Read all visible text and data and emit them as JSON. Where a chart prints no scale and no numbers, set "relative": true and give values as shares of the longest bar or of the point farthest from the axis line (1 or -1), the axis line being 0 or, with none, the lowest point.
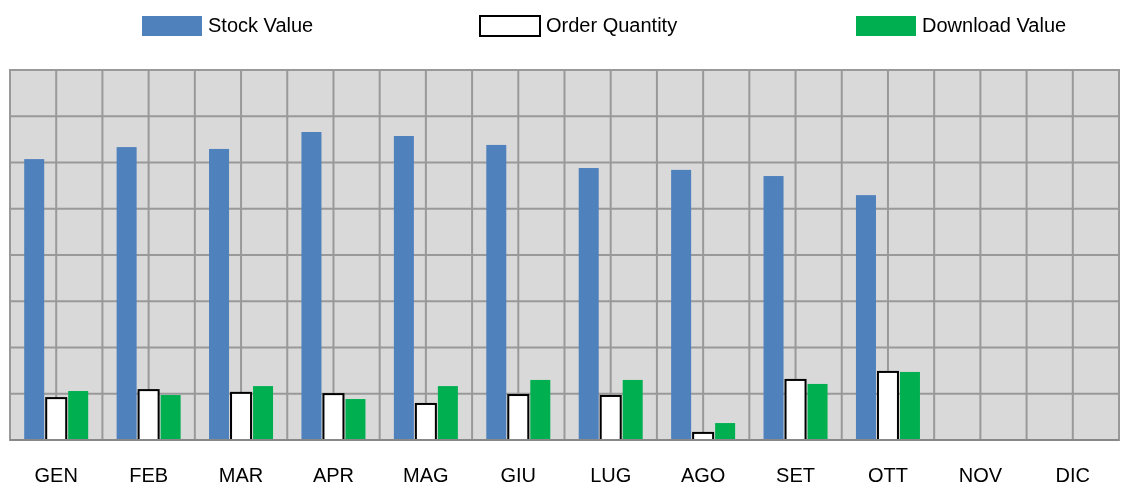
{
  "chart_data": {
    "type": "bar",
    "relative": true,
    "categories": [
      "GEN",
      "FEB",
      "MAR",
      "APR",
      "MAG",
      "GIU",
      "LUG",
      "AGO",
      "SET",
      "OTT",
      "NOV",
      "DIC"
    ],
    "series": [
      {
        "name": "Stock Value",
        "color": "#4f81bd",
        "values": [
          0.912,
          0.951,
          0.945,
          1,
          0.987,
          0.958,
          0.883,
          0.877,
          0.857,
          0.795,
          null,
          null
        ]
      },
      {
        "name": "Order Quantity",
        "color": "#ffffff",
        "values": [
          0.136,
          0.162,
          0.153,
          0.149,
          0.117,
          0.146,
          0.143,
          0.023,
          0.195,
          0.221,
          null,
          null
        ]
      },
      {
        "name": "Download Value",
        "color": "#00b050",
        "values": [
          0.159,
          0.146,
          0.175,
          0.133,
          0.175,
          0.195,
          0.195,
          0.055,
          0.182,
          0.221,
          null,
          null
        ]
      }
    ],
    "grid": true,
    "legend": "top"
  }
}
